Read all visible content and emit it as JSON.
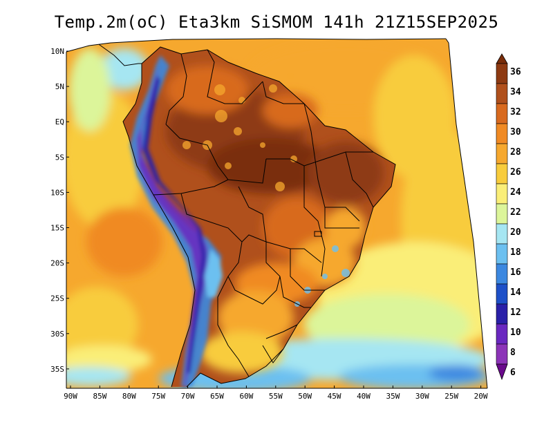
{
  "title": "Temp.2m(oC) Eta3km SiSMOM 141h 21Z15SEP2025",
  "map": {
    "variable": "Temp.2m",
    "units": "oC",
    "lat_labels": [
      "10N",
      "5N",
      "EQ",
      "5S",
      "10S",
      "15S",
      "20S",
      "25S",
      "30S",
      "35S"
    ],
    "lon_labels": [
      "90W",
      "85W",
      "80W",
      "75W",
      "70W",
      "65W",
      "60W",
      "55W",
      "50W",
      "45W",
      "40W",
      "35W",
      "30W",
      "25W",
      "20W"
    ],
    "lat_values": [
      10,
      5,
      0,
      -5,
      -10,
      -15,
      -20,
      -25,
      -30,
      -35
    ],
    "lon_values": [
      -90,
      -85,
      -80,
      -75,
      -70,
      -65,
      -60,
      -55,
      -50,
      -45,
      -40,
      -35,
      -30,
      -25,
      -20
    ]
  },
  "colorbar": {
    "labels": [
      "36",
      "34",
      "32",
      "30",
      "28",
      "26",
      "24",
      "22",
      "20",
      "18",
      "16",
      "14",
      "12",
      "10",
      "8",
      "6"
    ],
    "colors": [
      "#7a2d0a",
      "#8e3a12",
      "#b0501c",
      "#d86a1f",
      "#f08a24",
      "#f6a82e",
      "#f8cc3c",
      "#faee78",
      "#dcf59a",
      "#a6e6f2",
      "#6cc0f0",
      "#3c88e0",
      "#1e50c8",
      "#2a20a8",
      "#6a28c0",
      "#8c34b8",
      "#6a0a8c"
    ]
  }
}
